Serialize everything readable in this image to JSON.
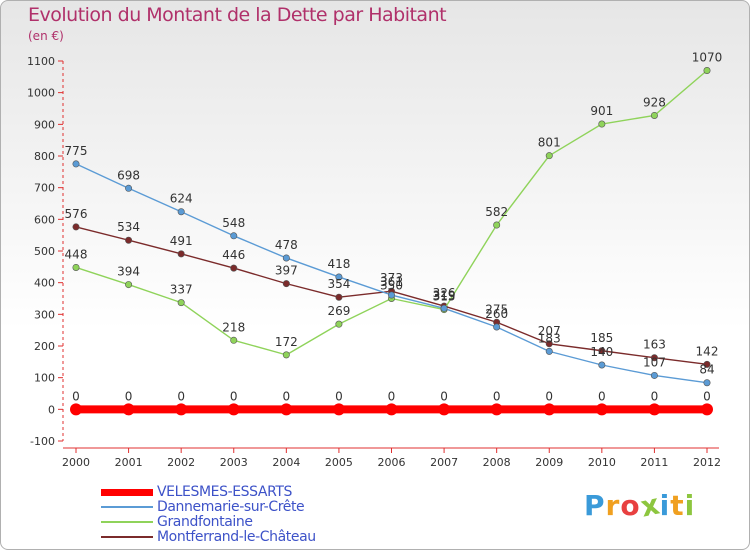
{
  "chart_data": {
    "type": "line",
    "title": "Evolution du Montant de la Dette par Habitant",
    "subtitle": "(en €)",
    "x": [
      "2000",
      "2001",
      "2002",
      "2003",
      "2004",
      "2005",
      "2006",
      "2007",
      "2008",
      "2009",
      "2010",
      "2011",
      "2012"
    ],
    "ylim": [
      -100,
      1100
    ],
    "yticks": [
      -100,
      0,
      100,
      200,
      300,
      400,
      500,
      600,
      700,
      800,
      900,
      1000,
      1100
    ],
    "grid": false,
    "legend_position": "bottom-left",
    "series": [
      {
        "name": "VELESMES-ESSARTS",
        "color": "#ff0000",
        "values": [
          0,
          0,
          0,
          0,
          0,
          0,
          0,
          0,
          0,
          0,
          0,
          0,
          0
        ]
      },
      {
        "name": "Dannemarie-sur-Crête",
        "color": "#5b9bd5",
        "values": [
          775,
          698,
          624,
          548,
          478,
          418,
          361,
          319,
          260,
          183,
          140,
          107,
          84
        ]
      },
      {
        "name": "Grandfontaine",
        "color": "#8fd35a",
        "values": [
          448,
          394,
          337,
          218,
          172,
          269,
          350,
          315,
          582,
          801,
          901,
          928,
          1070
        ]
      },
      {
        "name": "Montferrand-le-Château",
        "color": "#7b2b2b",
        "values": [
          576,
          534,
          491,
          446,
          397,
          354,
          373,
          326,
          275,
          207,
          185,
          163,
          142
        ]
      }
    ]
  },
  "page": {
    "title": "Evolution du Montant de la Dette par Habitant",
    "subtitle": "(en €)"
  },
  "legend": [
    {
      "label": "VELESMES-ESSARTS",
      "color": "#ff0000"
    },
    {
      "label": "Dannemarie-sur-Crête",
      "color": "#5b9bd5"
    },
    {
      "label": "Grandfontaine",
      "color": "#8fd35a"
    },
    {
      "label": "Montferrand-le-Château",
      "color": "#7b2b2b"
    }
  ],
  "logo": {
    "text": "Proxiti",
    "letters": [
      {
        "ch": "P",
        "color": "#3a9ad9"
      },
      {
        "ch": "r",
        "color": "#f0a020"
      },
      {
        "ch": "o",
        "color": "#e84040"
      },
      {
        "ch": "x",
        "color": "#8dc63f"
      },
      {
        "ch": "i",
        "color": "#3a9ad9"
      },
      {
        "ch": "t",
        "color": "#f0a020"
      },
      {
        "ch": "i",
        "color": "#8dc63f"
      }
    ]
  }
}
